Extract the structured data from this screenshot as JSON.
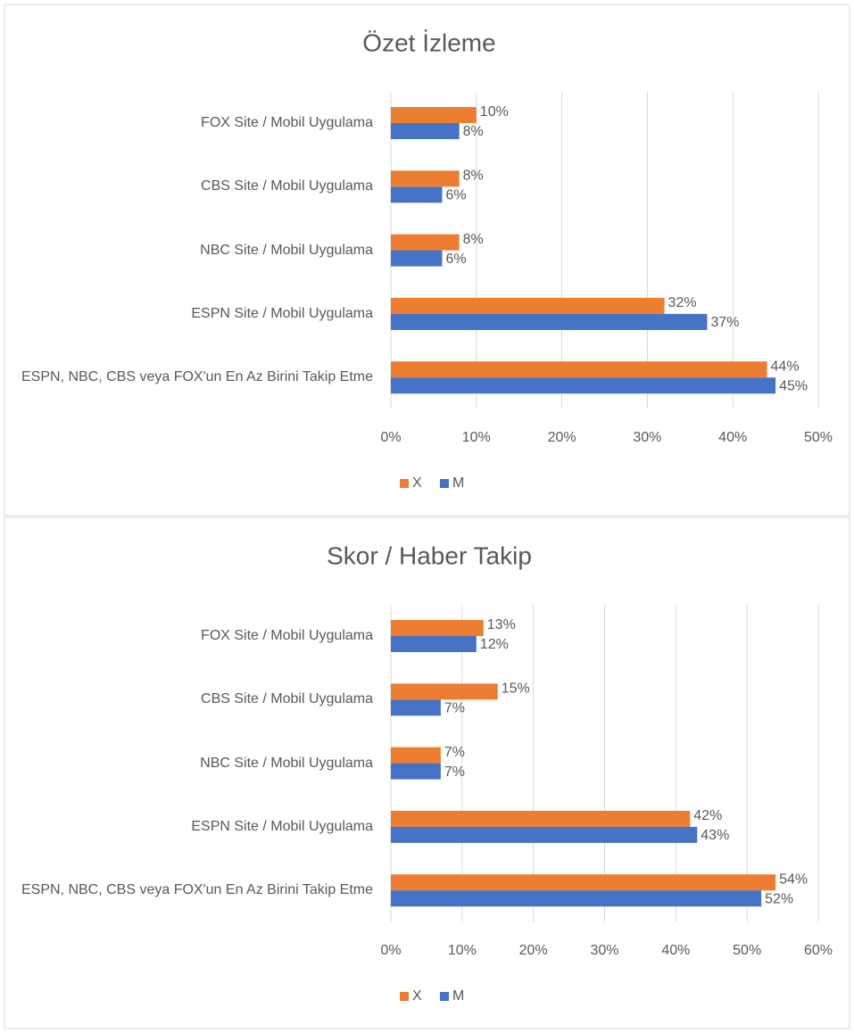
{
  "chart_data": [
    {
      "type": "bar",
      "orientation": "horizontal",
      "title": "Özet İzleme",
      "categories": [
        "FOX Site / Mobil Uygulama",
        "CBS Site / Mobil Uygulama",
        "NBC Site / Mobil Uygulama",
        "ESPN Site / Mobil Uygulama",
        "ESPN, NBC, CBS veya FOX'un En Az Birini Takip Etme"
      ],
      "series": [
        {
          "name": "X",
          "color": "#ed7d31",
          "values": [
            10,
            8,
            8,
            32,
            44
          ],
          "value_labels": [
            "10%",
            "8%",
            "8%",
            "32%",
            "44%"
          ]
        },
        {
          "name": "M",
          "color": "#4472c4",
          "values": [
            8,
            6,
            6,
            37,
            45
          ],
          "value_labels": [
            "8%",
            "6%",
            "6%",
            "37%",
            "45%"
          ]
        }
      ],
      "xlim": [
        0,
        50
      ],
      "xticks": [
        {
          "value": 0,
          "label": "0%"
        },
        {
          "value": 10,
          "label": "10%"
        },
        {
          "value": 20,
          "label": "20%"
        },
        {
          "value": 30,
          "label": "30%"
        },
        {
          "value": 40,
          "label": "40%"
        },
        {
          "value": 50,
          "label": "50%"
        }
      ],
      "grid": true,
      "legend": "bottom"
    },
    {
      "type": "bar",
      "orientation": "horizontal",
      "title": "Skor / Haber Takip",
      "categories": [
        "FOX Site / Mobil Uygulama",
        "CBS Site / Mobil Uygulama",
        "NBC Site / Mobil Uygulama",
        "ESPN Site / Mobil Uygulama",
        "ESPN, NBC, CBS veya FOX'un En Az Birini Takip Etme"
      ],
      "series": [
        {
          "name": "X",
          "color": "#ed7d31",
          "values": [
            13,
            15,
            7,
            42,
            54
          ],
          "value_labels": [
            "13%",
            "15%",
            "7%",
            "42%",
            "54%"
          ]
        },
        {
          "name": "M",
          "color": "#4472c4",
          "values": [
            12,
            7,
            7,
            43,
            52
          ],
          "value_labels": [
            "12%",
            "7%",
            "7%",
            "43%",
            "52%"
          ]
        }
      ],
      "xlim": [
        0,
        60
      ],
      "xticks": [
        {
          "value": 0,
          "label": "0%"
        },
        {
          "value": 10,
          "label": "10%"
        },
        {
          "value": 20,
          "label": "20%"
        },
        {
          "value": 30,
          "label": "30%"
        },
        {
          "value": 40,
          "label": "40%"
        },
        {
          "value": 50,
          "label": "50%"
        },
        {
          "value": 60,
          "label": "60%"
        }
      ],
      "grid": true,
      "legend": "bottom"
    }
  ]
}
